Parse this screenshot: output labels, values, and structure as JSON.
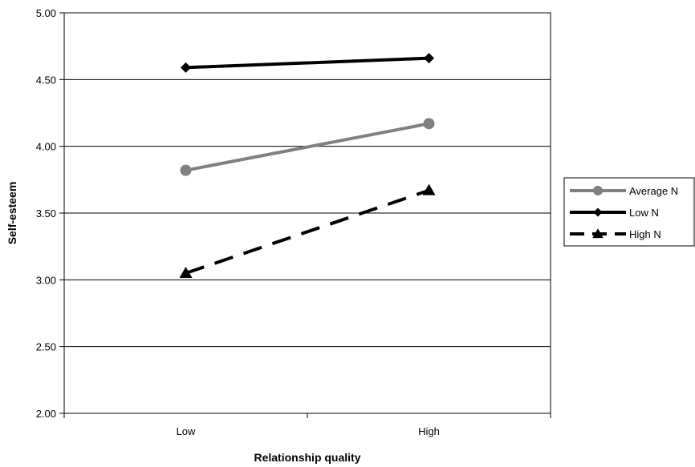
{
  "chart_data": {
    "type": "line",
    "title": "",
    "xlabel": "Relationship quality",
    "ylabel": "Self-esteem",
    "categories": [
      "Low",
      "High"
    ],
    "ylim": [
      2.0,
      5.0
    ],
    "yticks": [
      "2.00",
      "2.50",
      "3.00",
      "3.50",
      "4.00",
      "4.50",
      "5.00"
    ],
    "grid": "horizontal",
    "legend_position": "right",
    "series": [
      {
        "name": "Average N",
        "values": [
          3.82,
          4.17
        ],
        "color": "#808080",
        "style": "solid",
        "marker": "circle"
      },
      {
        "name": "Low N",
        "values": [
          4.59,
          4.66
        ],
        "color": "#000000",
        "style": "solid",
        "marker": "diamond"
      },
      {
        "name": "High N",
        "values": [
          3.05,
          3.67
        ],
        "color": "#000000",
        "style": "dashed",
        "marker": "triangle"
      }
    ]
  }
}
